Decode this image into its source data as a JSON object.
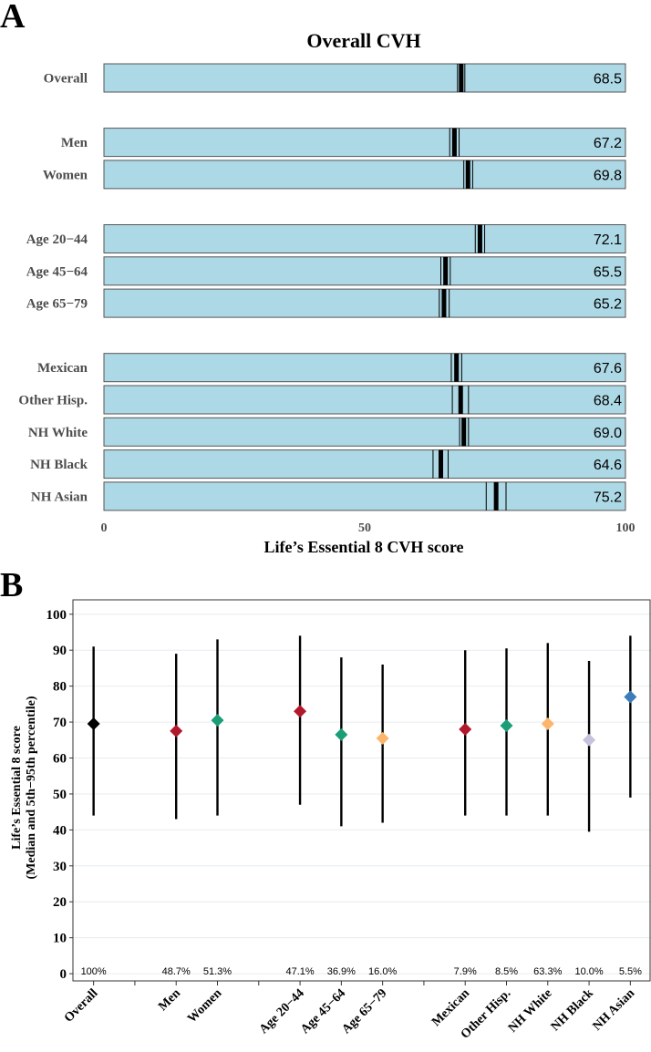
{
  "chart_data": [
    {
      "panel": "A",
      "type": "bar",
      "title": "Overall CVH",
      "xlabel": "Life’s Essential 8 CVH score",
      "xlim": [
        0,
        100
      ],
      "xticks": [
        "0",
        "50",
        "100"
      ],
      "bar_color": "#add8e6",
      "rows": [
        {
          "label": "Overall",
          "value": 68.5,
          "value_text": "68.5",
          "ci": [
            67.8,
            69.2
          ],
          "group": 0
        },
        {
          "label": "Men",
          "value": 67.2,
          "value_text": "67.2",
          "ci": [
            66.3,
            68.1
          ],
          "group": 1
        },
        {
          "label": "Women",
          "value": 69.8,
          "value_text": "69.8",
          "ci": [
            69.0,
            70.7
          ],
          "group": 1
        },
        {
          "label": "Age 20−44",
          "value": 72.1,
          "value_text": "72.1",
          "ci": [
            71.2,
            73.0
          ],
          "group": 2
        },
        {
          "label": "Age 45−64",
          "value": 65.5,
          "value_text": "65.5",
          "ci": [
            64.6,
            66.4
          ],
          "group": 2
        },
        {
          "label": "Age 65−79",
          "value": 65.2,
          "value_text": "65.2",
          "ci": [
            64.3,
            66.2
          ],
          "group": 2
        },
        {
          "label": "Mexican",
          "value": 67.6,
          "value_text": "67.6",
          "ci": [
            66.6,
            68.6
          ],
          "group": 3
        },
        {
          "label": "Other Hisp.",
          "value": 68.4,
          "value_text": "68.4",
          "ci": [
            66.8,
            69.9
          ],
          "group": 3
        },
        {
          "label": "NH White",
          "value": 69.0,
          "value_text": "69.0",
          "ci": [
            68.2,
            69.9
          ],
          "group": 3
        },
        {
          "label": "NH Black",
          "value": 64.6,
          "value_text": "64.6",
          "ci": [
            63.1,
            66.0
          ],
          "group": 3
        },
        {
          "label": "NH Asian",
          "value": 75.2,
          "value_text": "75.2",
          "ci": [
            73.3,
            77.1
          ],
          "group": 3
        }
      ]
    },
    {
      "panel": "B",
      "type": "scatter",
      "ylabel_line1": "Life’s Essential 8 score",
      "ylabel_line2": "(Median and 5th−95th percentile)",
      "ylim": [
        -2,
        104
      ],
      "yticks": [
        0,
        10,
        20,
        30,
        40,
        50,
        60,
        70,
        80,
        90,
        100
      ],
      "grid": true,
      "points": [
        {
          "label": "Overall",
          "median": 69.5,
          "p5": 44,
          "p95": 91,
          "pct": "100%",
          "color": "#000000",
          "pos": 0
        },
        {
          "label": "Men",
          "median": 67.5,
          "p5": 43,
          "p95": 89,
          "pct": "48.7%",
          "color": "#b2182b",
          "pos": 2
        },
        {
          "label": "Women",
          "median": 70.5,
          "p5": 44,
          "p95": 93,
          "pct": "51.3%",
          "color": "#1b9e77",
          "pos": 3
        },
        {
          "label": "Age 20−44",
          "median": 73,
          "p5": 47,
          "p95": 94,
          "pct": "47.1%",
          "color": "#b2182b",
          "pos": 5
        },
        {
          "label": "Age 45−64",
          "median": 66.5,
          "p5": 41,
          "p95": 88,
          "pct": "36.9%",
          "color": "#1b9e77",
          "pos": 6
        },
        {
          "label": "Age 65−79",
          "median": 65.5,
          "p5": 42,
          "p95": 86,
          "pct": "16.0%",
          "color": "#fdb46b",
          "pos": 7
        },
        {
          "label": "Mexican",
          "median": 68,
          "p5": 44,
          "p95": 90,
          "pct": "7.9%",
          "color": "#b2182b",
          "pos": 9
        },
        {
          "label": "Other Hisp.",
          "median": 69,
          "p5": 44,
          "p95": 90.5,
          "pct": "8.5%",
          "color": "#1b9e77",
          "pos": 10
        },
        {
          "label": "NH White",
          "median": 69.5,
          "p5": 44,
          "p95": 92,
          "pct": "63.3%",
          "color": "#fdb46b",
          "pos": 11
        },
        {
          "label": "NH Black",
          "median": 65,
          "p5": 39.5,
          "p95": 87,
          "pct": "10.0%",
          "color": "#c6c1dd",
          "pos": 12
        },
        {
          "label": "NH Asian",
          "median": 77,
          "p5": 49,
          "p95": 94,
          "pct": "5.5%",
          "color": "#3a7db8",
          "pos": 13
        }
      ],
      "group_dividers_after": [
        0,
        3,
        7
      ]
    }
  ],
  "panel_letters": [
    "A",
    "B"
  ]
}
